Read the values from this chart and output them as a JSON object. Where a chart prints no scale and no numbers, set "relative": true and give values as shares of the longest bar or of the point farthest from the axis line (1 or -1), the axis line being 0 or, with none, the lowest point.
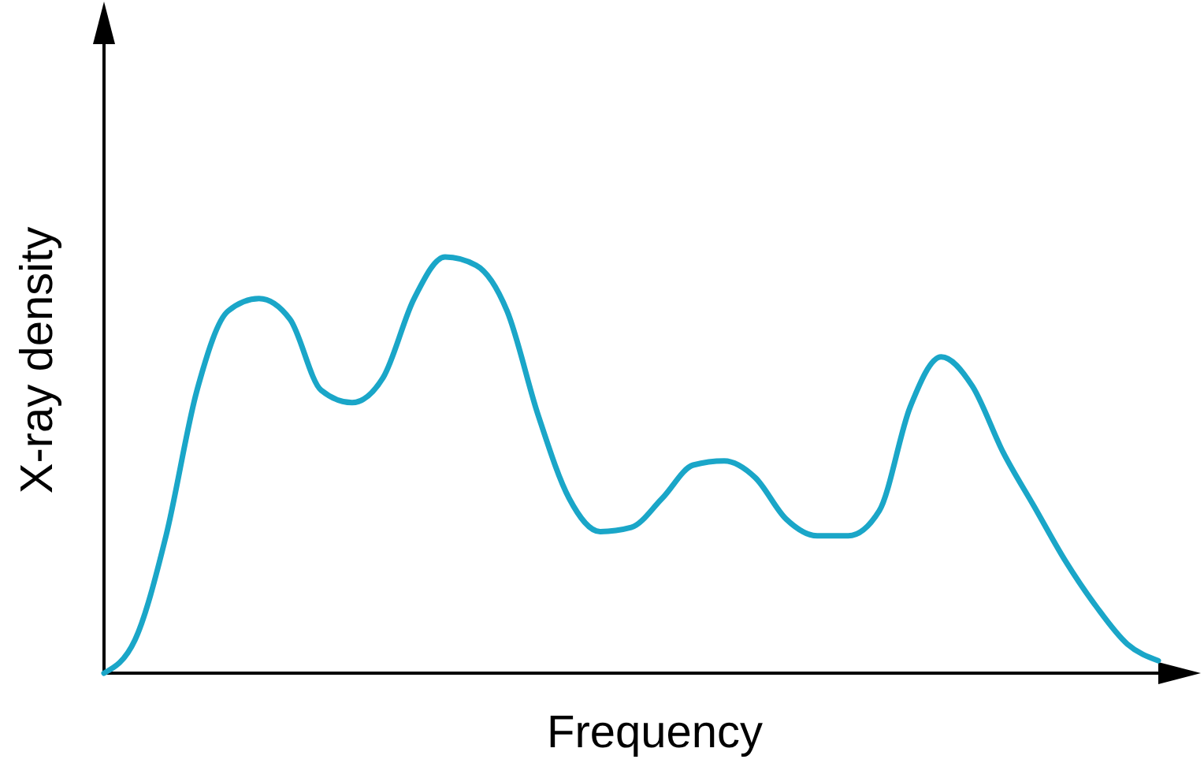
{
  "chart_data": {
    "type": "line",
    "relative": true,
    "xlabel": "Frequency",
    "ylabel": "X-ray density",
    "categories": [
      null,
      null,
      null,
      null,
      null,
      null,
      null,
      null,
      null,
      null,
      null,
      null,
      null,
      null,
      null,
      null,
      null,
      null,
      null,
      null,
      null,
      null,
      null,
      null,
      null,
      null,
      null,
      null,
      null,
      null,
      null,
      null,
      null,
      null,
      null
    ],
    "series": [
      {
        "color": "#1aa6c8",
        "values": [
          0,
          0.08,
          0.33,
          0.68,
          0.87,
          0.9,
          0.85,
          0.68,
          0.65,
          0.71,
          0.9,
          1,
          0.98,
          0.87,
          0.62,
          0.42,
          0.34,
          0.35,
          0.42,
          0.5,
          0.51,
          0.47,
          0.37,
          0.33,
          0.33,
          0.39,
          0.64,
          0.76,
          0.69,
          0.53,
          0.4,
          0.27,
          0.16,
          0.07,
          0.03
        ]
      }
    ]
  }
}
